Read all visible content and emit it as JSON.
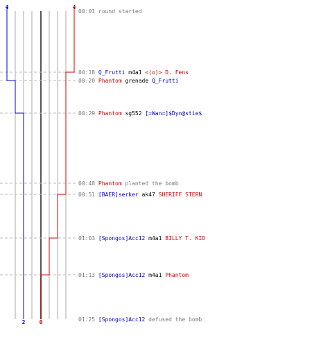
{
  "header": {
    "blue_start_count": "4",
    "red_start_count": "4"
  },
  "footer": {
    "blue_end_count": "2",
    "red_end_count": "0"
  },
  "colors": {
    "blue_team": "#0000cc",
    "red_team": "#cc0000",
    "timestamp": "#777777",
    "neutral_text": "#777777",
    "weapon_text": "#000000",
    "grid_line": "#aaaaaa",
    "center_line": "#555555",
    "dashed_line": "#bbbbbb"
  },
  "events": [
    {
      "time": "00:01",
      "blue_alive": 4,
      "red_alive": 4,
      "parts": [
        {
          "text": "round started",
          "team": "neutral"
        }
      ]
    },
    {
      "time": "00:18",
      "blue_alive": 4,
      "red_alive": 3,
      "parts": [
        {
          "text": "Q_Frutti",
          "team": "blue"
        },
        {
          "text": " m4a1 ",
          "team": "weapon"
        },
        {
          "text": "<(o)> D. Fens",
          "team": "red"
        }
      ]
    },
    {
      "time": "00:20",
      "blue_alive": 3,
      "red_alive": 3,
      "parts": [
        {
          "text": "Phantom",
          "team": "red"
        },
        {
          "text": " grenade ",
          "team": "weapon"
        },
        {
          "text": "Q_Frutti",
          "team": "blue"
        }
      ]
    },
    {
      "time": "00:29",
      "blue_alive": 2,
      "red_alive": 3,
      "parts": [
        {
          "text": "Phantom",
          "team": "red"
        },
        {
          "text": " sg552 ",
          "team": "weapon"
        },
        {
          "text": "[=Wan=]$Dyn@stie$",
          "team": "blue"
        }
      ]
    },
    {
      "time": "00:48",
      "blue_alive": 2,
      "red_alive": 3,
      "parts": [
        {
          "text": "Phantom",
          "team": "red"
        },
        {
          "text": " planted the bomb",
          "team": "neutral"
        }
      ]
    },
    {
      "time": "00:51",
      "blue_alive": 2,
      "red_alive": 2,
      "parts": [
        {
          "text": "[BAER]serker",
          "team": "blue"
        },
        {
          "text": " ak47 ",
          "team": "weapon"
        },
        {
          "text": "SHERIFF STERN",
          "team": "red"
        }
      ]
    },
    {
      "time": "01:03",
      "blue_alive": 2,
      "red_alive": 1,
      "parts": [
        {
          "text": "[Spongos]Acc12",
          "team": "blue"
        },
        {
          "text": " m4a1 ",
          "team": "weapon"
        },
        {
          "text": "BILLY T. KID",
          "team": "red"
        }
      ]
    },
    {
      "time": "01:13",
      "blue_alive": 2,
      "red_alive": 0,
      "parts": [
        {
          "text": "[Spongos]Acc12",
          "team": "blue"
        },
        {
          "text": " m4a1 ",
          "team": "weapon"
        },
        {
          "text": "Phantom",
          "team": "red"
        }
      ]
    },
    {
      "time": "01:25",
      "blue_alive": 2,
      "red_alive": 0,
      "parts": [
        {
          "text": "[Spongos]Acc12",
          "team": "blue"
        },
        {
          "text": " defused the bomb",
          "team": "neutral"
        }
      ]
    }
  ]
}
